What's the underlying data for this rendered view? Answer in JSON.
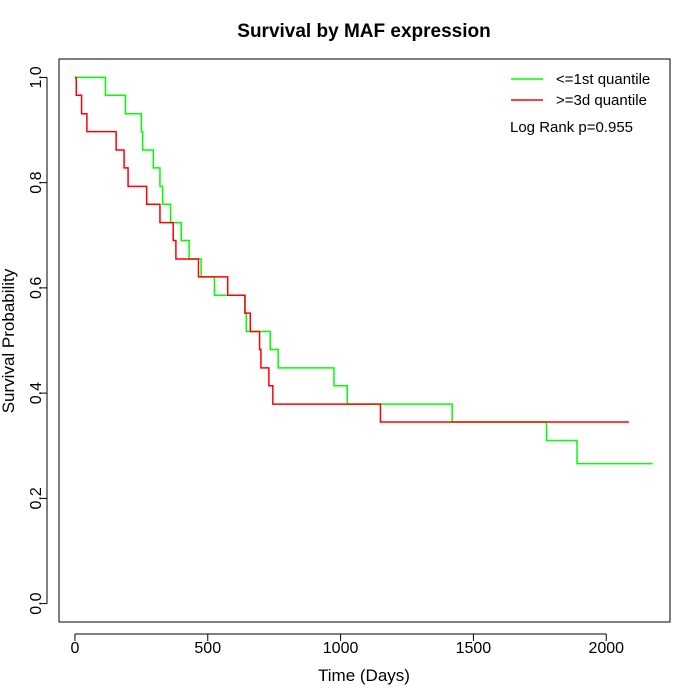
{
  "chart_data": {
    "type": "line",
    "title": "Survival by MAF expression",
    "xlabel": "Time (Days)",
    "ylabel": "Survival Probability",
    "xlim": [
      -60,
      2240
    ],
    "ylim": [
      -0.035,
      1.035
    ],
    "xticks": [
      0,
      500,
      1000,
      1500,
      2000
    ],
    "yticks": [
      0.0,
      0.2,
      0.4,
      0.6,
      0.8,
      1.0
    ],
    "xtick_labels": [
      "0",
      "500",
      "1000",
      "1500",
      "2000"
    ],
    "ytick_labels": [
      "0.0",
      "0.2",
      "0.4",
      "0.6",
      "0.8",
      "1.0"
    ],
    "grid": false,
    "legend_position": "top-right",
    "annotation": "Log Rank p=0.955",
    "series": [
      {
        "name": "<=1st quantile",
        "color": "#00ff00",
        "step": true,
        "points": [
          [
            0,
            1.0
          ],
          [
            115,
            1.0
          ],
          [
            115,
            0.966
          ],
          [
            190,
            0.966
          ],
          [
            190,
            0.931
          ],
          [
            250,
            0.931
          ],
          [
            250,
            0.897
          ],
          [
            255,
            0.897
          ],
          [
            255,
            0.862
          ],
          [
            295,
            0.862
          ],
          [
            295,
            0.828
          ],
          [
            320,
            0.828
          ],
          [
            320,
            0.793
          ],
          [
            330,
            0.793
          ],
          [
            330,
            0.759
          ],
          [
            360,
            0.759
          ],
          [
            360,
            0.724
          ],
          [
            400,
            0.724
          ],
          [
            400,
            0.69
          ],
          [
            430,
            0.69
          ],
          [
            430,
            0.655
          ],
          [
            475,
            0.655
          ],
          [
            475,
            0.621
          ],
          [
            525,
            0.621
          ],
          [
            525,
            0.586
          ],
          [
            640,
            0.586
          ],
          [
            640,
            0.552
          ],
          [
            645,
            0.552
          ],
          [
            645,
            0.517
          ],
          [
            735,
            0.517
          ],
          [
            735,
            0.483
          ],
          [
            765,
            0.483
          ],
          [
            765,
            0.448
          ],
          [
            975,
            0.448
          ],
          [
            975,
            0.414
          ],
          [
            1025,
            0.414
          ],
          [
            1025,
            0.379
          ],
          [
            1420,
            0.379
          ],
          [
            1420,
            0.345
          ],
          [
            1775,
            0.345
          ],
          [
            1775,
            0.31
          ],
          [
            1890,
            0.31
          ],
          [
            1890,
            0.266
          ],
          [
            2175,
            0.266
          ]
        ]
      },
      {
        "name": ">=3d quantile",
        "color": "#ff0000",
        "step": true,
        "points": [
          [
            0,
            1.0
          ],
          [
            5,
            1.0
          ],
          [
            5,
            0.966
          ],
          [
            25,
            0.966
          ],
          [
            25,
            0.931
          ],
          [
            45,
            0.931
          ],
          [
            45,
            0.897
          ],
          [
            155,
            0.897
          ],
          [
            155,
            0.862
          ],
          [
            185,
            0.862
          ],
          [
            185,
            0.828
          ],
          [
            200,
            0.828
          ],
          [
            200,
            0.793
          ],
          [
            270,
            0.793
          ],
          [
            270,
            0.759
          ],
          [
            320,
            0.759
          ],
          [
            320,
            0.724
          ],
          [
            370,
            0.724
          ],
          [
            370,
            0.69
          ],
          [
            380,
            0.69
          ],
          [
            380,
            0.655
          ],
          [
            465,
            0.655
          ],
          [
            465,
            0.621
          ],
          [
            575,
            0.621
          ],
          [
            575,
            0.586
          ],
          [
            640,
            0.586
          ],
          [
            640,
            0.552
          ],
          [
            660,
            0.552
          ],
          [
            660,
            0.517
          ],
          [
            695,
            0.517
          ],
          [
            695,
            0.483
          ],
          [
            700,
            0.483
          ],
          [
            700,
            0.448
          ],
          [
            730,
            0.448
          ],
          [
            730,
            0.414
          ],
          [
            745,
            0.414
          ],
          [
            745,
            0.379
          ],
          [
            1150,
            0.379
          ],
          [
            1150,
            0.345
          ],
          [
            2085,
            0.345
          ]
        ]
      }
    ]
  }
}
